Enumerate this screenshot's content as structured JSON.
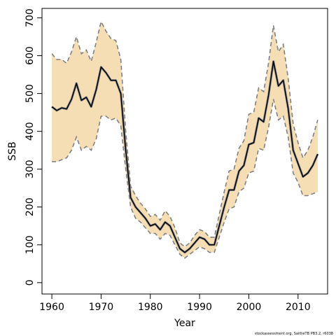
{
  "chart_data": {
    "type": "line",
    "title": "",
    "xlabel": "Year",
    "ylabel": "SSB",
    "xlim": [
      1958,
      2016
    ],
    "ylim": [
      -30,
      725
    ],
    "x_ticks": [
      1960,
      1970,
      1980,
      1990,
      2000,
      2010
    ],
    "y_ticks": [
      0,
      100,
      200,
      300,
      400,
      500,
      600,
      700
    ],
    "colors": {
      "band": "#f5deb3",
      "line": "#000000",
      "dashed": "#808080"
    },
    "credit": "stockassessment.org, SaitheTB PB3.2, r6038",
    "x": [
      1960,
      1961,
      1962,
      1963,
      1964,
      1965,
      1966,
      1967,
      1968,
      1969,
      1970,
      1971,
      1972,
      1973,
      1974,
      1975,
      1976,
      1977,
      1978,
      1979,
      1980,
      1981,
      1982,
      1983,
      1984,
      1985,
      1986,
      1987,
      1988,
      1989,
      1990,
      1991,
      1992,
      1993,
      1994,
      1995,
      1996,
      1997,
      1998,
      1999,
      2000,
      2001,
      2002,
      2003,
      2004,
      2005,
      2006,
      2007,
      2008,
      2009,
      2010,
      2011,
      2012,
      2013,
      2014
    ],
    "series": [
      {
        "role": "estimate",
        "values": [
          465,
          455,
          462,
          459,
          485,
          527,
          482,
          490,
          465,
          510,
          570,
          555,
          535,
          535,
          500,
          350,
          225,
          200,
          185,
          170,
          150,
          155,
          140,
          160,
          150,
          120,
          90,
          80,
          90,
          105,
          120,
          115,
          100,
          100,
          150,
          200,
          245,
          245,
          295,
          310,
          365,
          370,
          435,
          425,
          495,
          585,
          520,
          535,
          460,
          350,
          315,
          280,
          290,
          310,
          340
        ]
      },
      {
        "role": "lower",
        "values": [
          320,
          320,
          325,
          330,
          350,
          385,
          350,
          360,
          350,
          380,
          440,
          440,
          430,
          435,
          415,
          300,
          200,
          170,
          160,
          145,
          130,
          130,
          115,
          130,
          125,
          100,
          75,
          65,
          75,
          85,
          95,
          90,
          80,
          80,
          120,
          160,
          195,
          200,
          240,
          250,
          290,
          295,
          355,
          350,
          410,
          485,
          430,
          440,
          385,
          290,
          265,
          230,
          230,
          235,
          240
        ]
      },
      {
        "role": "upper",
        "values": [
          605,
          590,
          590,
          580,
          610,
          650,
          605,
          615,
          585,
          635,
          690,
          665,
          645,
          640,
          590,
          400,
          255,
          230,
          210,
          195,
          175,
          180,
          165,
          190,
          175,
          145,
          105,
          95,
          105,
          125,
          140,
          135,
          120,
          120,
          180,
          240,
          295,
          300,
          355,
          375,
          445,
          450,
          515,
          505,
          580,
          680,
          610,
          630,
          540,
          420,
          370,
          330,
          350,
          385,
          430
        ]
      }
    ]
  }
}
